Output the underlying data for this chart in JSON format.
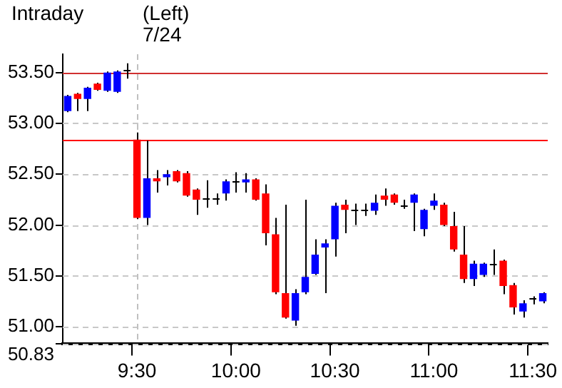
{
  "chart_data": {
    "type": "candlestick",
    "title": "Intraday",
    "annotations": [
      "(Left)",
      "7/24"
    ],
    "categories": [
      null,
      null,
      null,
      null,
      null,
      null,
      null,
      "9:30",
      null,
      null,
      null,
      null,
      null,
      null,
      null,
      null,
      null,
      "10:00",
      null,
      null,
      null,
      null,
      null,
      null,
      null,
      null,
      null,
      "10:30",
      null,
      null,
      null,
      null,
      null,
      null,
      null,
      null,
      null,
      "11:00",
      null,
      null,
      null,
      null,
      null,
      null,
      null,
      null,
      null,
      "11:30",
      null
    ],
    "ohlc": [
      [
        53.12,
        53.28,
        53.11,
        53.27
      ],
      [
        53.29,
        53.3,
        53.12,
        53.24
      ],
      [
        53.24,
        53.36,
        53.12,
        53.35
      ],
      [
        53.39,
        53.4,
        53.32,
        53.33
      ],
      [
        53.32,
        53.51,
        53.31,
        53.5
      ],
      [
        53.31,
        53.52,
        53.3,
        53.51
      ],
      [
        53.52,
        53.59,
        53.44,
        53.52
      ],
      [
        52.84,
        52.91,
        52.06,
        52.07
      ],
      [
        52.07,
        52.83,
        52.0,
        52.46
      ],
      [
        52.46,
        52.54,
        52.32,
        52.43
      ],
      [
        52.47,
        52.54,
        52.39,
        52.5
      ],
      [
        52.53,
        52.54,
        52.42,
        52.43
      ],
      [
        52.51,
        52.53,
        52.28,
        52.29
      ],
      [
        52.35,
        52.36,
        52.1,
        52.25
      ],
      [
        52.27,
        52.44,
        52.17,
        52.27
      ],
      [
        52.27,
        52.31,
        52.2,
        52.27
      ],
      [
        52.31,
        52.45,
        52.24,
        52.43
      ],
      [
        52.43,
        52.52,
        52.32,
        52.43
      ],
      [
        52.42,
        52.51,
        52.32,
        52.45
      ],
      [
        52.45,
        52.46,
        52.24,
        52.25
      ],
      [
        52.31,
        52.4,
        51.8,
        51.92
      ],
      [
        51.91,
        52.07,
        51.32,
        51.34
      ],
      [
        51.33,
        52.2,
        51.08,
        51.09
      ],
      [
        51.06,
        51.37,
        51.01,
        51.33
      ],
      [
        51.34,
        52.25,
        51.32,
        51.49
      ],
      [
        51.52,
        51.86,
        51.51,
        51.71
      ],
      [
        51.78,
        51.86,
        51.33,
        51.82
      ],
      [
        51.86,
        52.22,
        51.69,
        52.19
      ],
      [
        52.2,
        52.25,
        51.92,
        52.15
      ],
      [
        52.15,
        52.21,
        52.0,
        52.15
      ],
      [
        52.15,
        52.21,
        52.09,
        52.15
      ],
      [
        52.14,
        52.3,
        52.1,
        52.22
      ],
      [
        52.29,
        52.36,
        52.19,
        52.25
      ],
      [
        52.3,
        52.31,
        52.2,
        52.22
      ],
      [
        52.2,
        52.25,
        52.16,
        52.2
      ],
      [
        52.22,
        52.31,
        51.94,
        52.3
      ],
      [
        51.96,
        52.16,
        51.89,
        52.15
      ],
      [
        52.19,
        52.31,
        52.15,
        52.24
      ],
      [
        52.2,
        52.22,
        51.99,
        52.0
      ],
      [
        51.99,
        52.13,
        51.74,
        51.76
      ],
      [
        51.71,
        51.99,
        51.43,
        51.47
      ],
      [
        51.47,
        51.65,
        51.4,
        51.62
      ],
      [
        51.51,
        51.63,
        51.49,
        51.62
      ],
      [
        51.62,
        51.76,
        51.51,
        51.62
      ],
      [
        51.65,
        51.66,
        51.32,
        51.4
      ],
      [
        51.41,
        51.43,
        51.12,
        51.19
      ],
      [
        51.15,
        51.26,
        51.09,
        51.23
      ],
      [
        51.28,
        51.3,
        51.22,
        51.28
      ],
      [
        51.25,
        51.34,
        51.23,
        51.33
      ]
    ],
    "colors": [
      "#0000ff",
      "#ff0000",
      "#0000ff",
      "#ff0000",
      "#0000ff",
      "#0000ff",
      "#000000",
      "#ff0000",
      "#0000ff",
      "#ff0000",
      "#0000ff",
      "#ff0000",
      "#ff0000",
      "#ff0000",
      "#000000",
      "#000000",
      "#0000ff",
      "#000000",
      "#0000ff",
      "#ff0000",
      "#ff0000",
      "#ff0000",
      "#ff0000",
      "#0000ff",
      "#0000ff",
      "#0000ff",
      "#0000ff",
      "#0000ff",
      "#ff0000",
      "#000000",
      "#000000",
      "#0000ff",
      "#ff0000",
      "#ff0000",
      "#000000",
      "#0000ff",
      "#0000ff",
      "#0000ff",
      "#ff0000",
      "#ff0000",
      "#ff0000",
      "#0000ff",
      "#0000ff",
      "#000000",
      "#ff0000",
      "#ff0000",
      "#0000ff",
      "#000000",
      "#0000ff"
    ],
    "ylim": [
      50.83,
      53.68
    ],
    "yticks": [
      50.83,
      {
        "value": 51,
        "label": "51.00"
      },
      {
        "value": 51.5,
        "label": "51.50"
      },
      {
        "value": 52,
        "label": "52.00"
      },
      {
        "value": 52.5,
        "label": "52.50"
      },
      {
        "value": 53,
        "label": "53.00"
      },
      {
        "value": 53.5,
        "label": "53.50"
      }
    ],
    "grid": "y",
    "ref_lines": [
      {
        "axis": "y",
        "value": 53.5,
        "color": "#d03030"
      },
      {
        "axis": "y",
        "value": 52.84,
        "color": "#ff0000"
      },
      {
        "axis": "x",
        "value": "9:30",
        "color": "#c0c0c0",
        "line_style": "dashed"
      }
    ]
  }
}
